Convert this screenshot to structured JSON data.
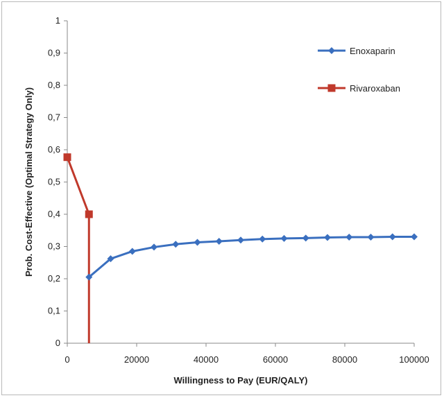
{
  "chart_data": {
    "type": "line",
    "title": "",
    "xlabel": "Willingness to Pay (EUR/QALY)",
    "ylabel": "Prob. Cost-Effective (Optimal Strategy Only)",
    "xlim": [
      0,
      100000
    ],
    "ylim": [
      0,
      1
    ],
    "x_ticks": [
      "0",
      "20000",
      "40000",
      "60000",
      "80000",
      "100000"
    ],
    "y_ticks": [
      "0",
      "0,1",
      "0,2",
      "0,3",
      "0,4",
      "0,5",
      "0,6",
      "0,7",
      "0,8",
      "0,9",
      "1"
    ],
    "grid": false,
    "legend_position": "top-right",
    "series": [
      {
        "name": "Enoxaparin",
        "color": "#3a6fbf",
        "marker": "diamond",
        "x": [
          6250,
          12500,
          18750,
          25000,
          31250,
          37500,
          43750,
          50000,
          56250,
          62500,
          68750,
          75000,
          81250,
          87500,
          93750,
          100000
        ],
        "y": [
          0.205,
          0.262,
          0.285,
          0.298,
          0.307,
          0.313,
          0.316,
          0.32,
          0.323,
          0.325,
          0.326,
          0.328,
          0.329,
          0.329,
          0.33,
          0.33
        ]
      },
      {
        "name": "Rivaroxaban",
        "color": "#c0392b",
        "marker": "square",
        "x": [
          0,
          6250,
          6250
        ],
        "y": [
          0.577,
          0.4,
          0
        ],
        "marker_count": 2
      }
    ]
  }
}
